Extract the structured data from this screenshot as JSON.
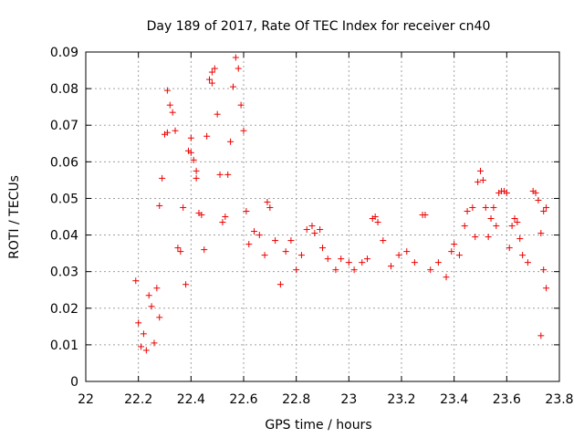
{
  "chart_data": {
    "type": "scatter",
    "title": "Day 189 of 2017, Rate Of TEC Index for receiver cn40",
    "xlabel": "GPS time / hours",
    "ylabel": "ROTI / TECUs",
    "xlim": [
      22,
      23.8
    ],
    "ylim": [
      0,
      0.09
    ],
    "xticks": [
      "22",
      "22.2",
      "22.4",
      "22.6",
      "22.8",
      "23",
      "23.2",
      "23.4",
      "23.6",
      "23.8"
    ],
    "yticks": [
      "0",
      "0.01",
      "0.02",
      "0.03",
      "0.04",
      "0.05",
      "0.06",
      "0.07",
      "0.08",
      "0.09"
    ],
    "grid": true,
    "marker": "+",
    "color": "#ee0000",
    "series": [
      {
        "name": "ROTI",
        "points": [
          [
            22.19,
            0.0275
          ],
          [
            22.2,
            0.016
          ],
          [
            22.21,
            0.0095
          ],
          [
            22.22,
            0.013
          ],
          [
            22.23,
            0.0085
          ],
          [
            22.24,
            0.0235
          ],
          [
            22.25,
            0.0205
          ],
          [
            22.26,
            0.0105
          ],
          [
            22.27,
            0.0255
          ],
          [
            22.28,
            0.0175
          ],
          [
            22.28,
            0.048
          ],
          [
            22.29,
            0.0555
          ],
          [
            22.3,
            0.0675
          ],
          [
            22.31,
            0.068
          ],
          [
            22.31,
            0.0795
          ],
          [
            22.32,
            0.0755
          ],
          [
            22.33,
            0.0735
          ],
          [
            22.34,
            0.0685
          ],
          [
            22.35,
            0.0365
          ],
          [
            22.36,
            0.0355
          ],
          [
            22.37,
            0.0475
          ],
          [
            22.38,
            0.0265
          ],
          [
            22.39,
            0.063
          ],
          [
            22.4,
            0.0665
          ],
          [
            22.4,
            0.0625
          ],
          [
            22.41,
            0.0605
          ],
          [
            22.42,
            0.0575
          ],
          [
            22.42,
            0.0555
          ],
          [
            22.43,
            0.046
          ],
          [
            22.44,
            0.0455
          ],
          [
            22.45,
            0.036
          ],
          [
            22.46,
            0.067
          ],
          [
            22.47,
            0.0825
          ],
          [
            22.48,
            0.0815
          ],
          [
            22.48,
            0.0845
          ],
          [
            22.49,
            0.0855
          ],
          [
            22.5,
            0.073
          ],
          [
            22.51,
            0.0565
          ],
          [
            22.52,
            0.0435
          ],
          [
            22.53,
            0.045
          ],
          [
            22.54,
            0.0565
          ],
          [
            22.55,
            0.0655
          ],
          [
            22.56,
            0.0805
          ],
          [
            22.57,
            0.0885
          ],
          [
            22.58,
            0.0855
          ],
          [
            22.59,
            0.0755
          ],
          [
            22.6,
            0.0685
          ],
          [
            22.61,
            0.0465
          ],
          [
            22.62,
            0.0375
          ],
          [
            22.64,
            0.041
          ],
          [
            22.66,
            0.04
          ],
          [
            22.68,
            0.0345
          ],
          [
            22.69,
            0.049
          ],
          [
            22.7,
            0.0475
          ],
          [
            22.72,
            0.0385
          ],
          [
            22.74,
            0.0265
          ],
          [
            22.76,
            0.0355
          ],
          [
            22.78,
            0.0385
          ],
          [
            22.8,
            0.0305
          ],
          [
            22.82,
            0.0345
          ],
          [
            22.84,
            0.0415
          ],
          [
            22.86,
            0.0425
          ],
          [
            22.87,
            0.0405
          ],
          [
            22.89,
            0.0415
          ],
          [
            22.9,
            0.0365
          ],
          [
            22.92,
            0.0335
          ],
          [
            22.95,
            0.0305
          ],
          [
            22.97,
            0.0335
          ],
          [
            23.0,
            0.0325
          ],
          [
            23.02,
            0.0305
          ],
          [
            23.05,
            0.0325
          ],
          [
            23.07,
            0.0335
          ],
          [
            23.09,
            0.0445
          ],
          [
            23.1,
            0.045
          ],
          [
            23.11,
            0.0435
          ],
          [
            23.13,
            0.0385
          ],
          [
            23.16,
            0.0315
          ],
          [
            23.19,
            0.0345
          ],
          [
            23.22,
            0.0355
          ],
          [
            23.25,
            0.0325
          ],
          [
            23.28,
            0.0455
          ],
          [
            23.29,
            0.0455
          ],
          [
            23.31,
            0.0305
          ],
          [
            23.34,
            0.0325
          ],
          [
            23.37,
            0.0285
          ],
          [
            23.39,
            0.0355
          ],
          [
            23.4,
            0.0375
          ],
          [
            23.42,
            0.0345
          ],
          [
            23.44,
            0.0425
          ],
          [
            23.45,
            0.0465
          ],
          [
            23.47,
            0.0475
          ],
          [
            23.48,
            0.0395
          ],
          [
            23.49,
            0.0545
          ],
          [
            23.5,
            0.0575
          ],
          [
            23.51,
            0.055
          ],
          [
            23.52,
            0.0475
          ],
          [
            23.53,
            0.0395
          ],
          [
            23.54,
            0.0445
          ],
          [
            23.55,
            0.0475
          ],
          [
            23.56,
            0.0425
          ],
          [
            23.57,
            0.0515
          ],
          [
            23.58,
            0.052
          ],
          [
            23.59,
            0.052
          ],
          [
            23.6,
            0.0515
          ],
          [
            23.61,
            0.0365
          ],
          [
            23.62,
            0.0425
          ],
          [
            23.63,
            0.0445
          ],
          [
            23.64,
            0.0435
          ],
          [
            23.65,
            0.039
          ],
          [
            23.66,
            0.0345
          ],
          [
            23.68,
            0.0325
          ],
          [
            23.7,
            0.052
          ],
          [
            23.71,
            0.0515
          ],
          [
            23.72,
            0.0495
          ],
          [
            23.73,
            0.0405
          ],
          [
            23.74,
            0.0465
          ],
          [
            23.75,
            0.0475
          ],
          [
            23.75,
            0.0255
          ],
          [
            23.74,
            0.0305
          ],
          [
            23.73,
            0.0125
          ]
        ]
      }
    ]
  }
}
